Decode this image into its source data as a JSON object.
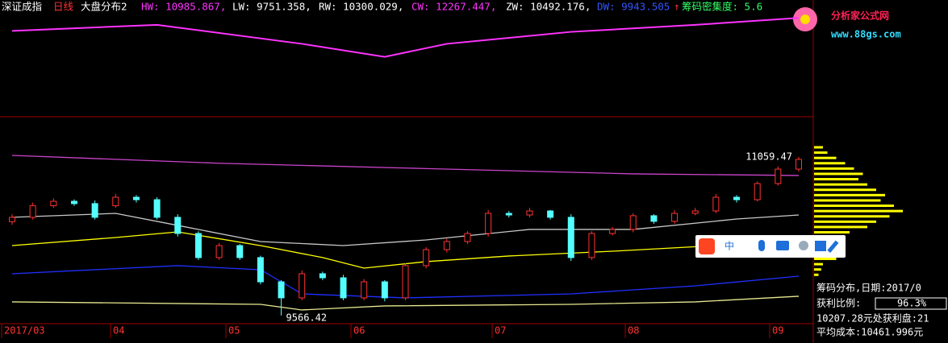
{
  "header": {
    "index_name": "深证成指",
    "period": "日线",
    "indicator": "大盘分布2",
    "hw": "HW: 10985.867,",
    "lw": "LW: 9751.358,",
    "rw": "RW: 10300.029,",
    "cw": "CW: 12267.447,",
    "zw": "ZW: 10492.176,",
    "dw": "DW: 9943.505",
    "arrow": "↑",
    "density": "筹码密集度: 5.6"
  },
  "logo": {
    "title": "分析家公式网",
    "url": "www.88gs.com"
  },
  "toolbar": {
    "label": "中"
  },
  "info_panel": {
    "title": "筹码分布,日期:2017/0",
    "profit_label": "获利比例:",
    "profit_value": "96.3%",
    "profit_at": "10207.28元处获利盘:21",
    "avg_cost": "平均成本:10461.996元"
  },
  "month_labels": [
    "2017/03",
    "04",
    "05",
    "06",
    "07",
    "08",
    "09"
  ],
  "top_panel": {
    "type": "line",
    "color": "#ff33ff",
    "ylim": [
      0,
      100
    ],
    "x": [
      0,
      7,
      14,
      18,
      21,
      27,
      33,
      38
    ],
    "values": [
      82,
      88,
      69,
      56,
      69,
      81,
      88,
      95
    ]
  },
  "chart_data": {
    "type": "candlestick",
    "ylim": [
      9505,
      11415
    ],
    "up_color": "#ff3232",
    "down_color": "#54ffff",
    "annotations": [
      "11059.47",
      "9566.42"
    ],
    "open": [
      10450,
      10491,
      10600,
      10642,
      10620,
      10600,
      10680,
      10657,
      10491,
      10339,
      10112,
      10225,
      10112,
      9884,
      9733,
      9960,
      9922,
      9733,
      9884,
      9733,
      10036,
      10187,
      10263,
      10339,
      10528,
      10513,
      10551,
      10491,
      10112,
      10339,
      10377,
      10506,
      10453,
      10528,
      10551,
      10680,
      10657,
      10809,
      10945
    ],
    "high": [
      10520,
      10630,
      10670,
      10660,
      10650,
      10710,
      10700,
      10680,
      10520,
      10360,
      10250,
      10240,
      10130,
      9900,
      9990,
      9980,
      9950,
      9910,
      9900,
      10060,
      10210,
      10290,
      10360,
      10560,
      10550,
      10580,
      10560,
      10520,
      10360,
      10400,
      10530,
      10520,
      10560,
      10580,
      10710,
      10700,
      10830,
      10970,
      11059.47
    ],
    "low": [
      10420,
      10470,
      10580,
      10600,
      10470,
      10580,
      10630,
      10470,
      10310,
      10090,
      10090,
      10090,
      9860,
      9566.42,
      9710,
      9900,
      9710,
      9710,
      9700,
      9710,
      10010,
      10160,
      10240,
      10310,
      10490,
      10490,
      10470,
      10080,
      10090,
      10320,
      10350,
      10430,
      10430,
      10510,
      10530,
      10630,
      10640,
      10790,
      10920
    ],
    "close": [
      10491,
      10600,
      10642,
      10620,
      10491,
      10680,
      10657,
      10491,
      10339,
      10112,
      10225,
      10112,
      9884,
      9733,
      9960,
      9922,
      9733,
      9884,
      9733,
      10036,
      10187,
      10263,
      10339,
      10528,
      10513,
      10551,
      10491,
      10112,
      10339,
      10377,
      10506,
      10453,
      10528,
      10551,
      10680,
      10657,
      10809,
      10945,
      11036
    ],
    "lines": [
      {
        "color": "#cc44cc",
        "x": [
          0,
          10,
          20,
          30,
          38
        ],
        "values": [
          11074,
          11000,
          10950,
          10900,
          10885
        ]
      },
      {
        "color": "#c8c8c8",
        "x": [
          0,
          5,
          8,
          12,
          16,
          20,
          25,
          30,
          35,
          38
        ],
        "values": [
          10491,
          10528,
          10415,
          10263,
          10225,
          10278,
          10377,
          10377,
          10475,
          10513
        ]
      },
      {
        "color": "#ffff00",
        "x": [
          0,
          5,
          8,
          12,
          15,
          17,
          20,
          24,
          29,
          34,
          38
        ],
        "values": [
          10225,
          10301,
          10354,
          10225,
          10112,
          10013,
          10074,
          10127,
          10172,
          10225,
          10278
        ]
      },
      {
        "color": "#2030ff",
        "x": [
          0,
          8,
          12,
          14,
          19,
          27,
          33,
          38
        ],
        "values": [
          9960,
          10036,
          9998,
          9770,
          9733,
          9770,
          9846,
          9937
        ]
      },
      {
        "color": "#e8e890",
        "x": [
          0,
          12,
          14,
          18,
          27,
          33,
          38
        ],
        "values": [
          9695,
          9672,
          9619,
          9657,
          9672,
          9695,
          9748
        ]
      }
    ],
    "distribution": {
      "color": "#ffff00",
      "prices": [
        11150,
        11100,
        11050,
        11000,
        10950,
        10900,
        10850,
        10800,
        10750,
        10700,
        10650,
        10600,
        10550,
        10500,
        10450,
        10400,
        10350,
        10300,
        10250,
        10200,
        10150,
        10100,
        10050,
        10000,
        9950
      ],
      "values": [
        10,
        15,
        25,
        35,
        45,
        55,
        50,
        60,
        70,
        80,
        75,
        90,
        100,
        85,
        70,
        60,
        40,
        30,
        20,
        15,
        35,
        25,
        10,
        8,
        5
      ]
    }
  }
}
